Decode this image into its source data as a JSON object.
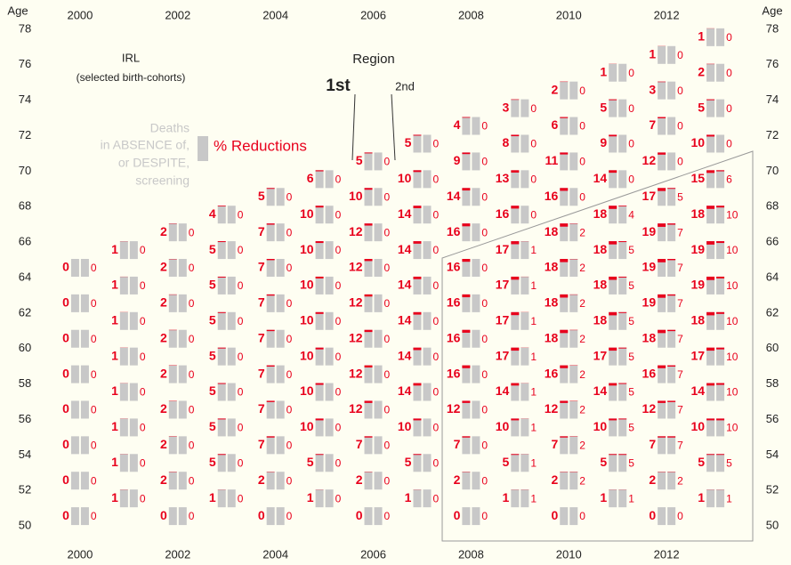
{
  "chart_data": {
    "type": "glyph",
    "notes": [
      "IRL",
      "(selected birth-cohorts)"
    ],
    "region_label": "Region",
    "first_label": "1st",
    "second_label": "2nd",
    "legend_gray": [
      "Deaths",
      "in ABSENCE of,",
      "or DESPITE,",
      "screening"
    ],
    "legend_red": "% Reductions",
    "ylabel": "Age",
    "bar_color": "#c8c8c8",
    "reduction_color": "#e8001c",
    "xlim": [
      1999,
      2014
    ],
    "xticks": [
      2000,
      2002,
      2004,
      2006,
      2008,
      2010,
      2012
    ],
    "ylim": [
      49,
      79
    ],
    "yticks": [
      50,
      52,
      54,
      56,
      58,
      60,
      62,
      64,
      66,
      68,
      70,
      72,
      74,
      76,
      78
    ],
    "columns": [
      {
        "year": 2000,
        "ages": [
          50,
          52,
          54,
          56,
          58,
          60,
          62,
          64
        ],
        "first": [
          0,
          0,
          0,
          0,
          0,
          0,
          0,
          0
        ],
        "second": [
          0,
          0,
          0,
          0,
          0,
          0,
          0,
          0
        ]
      },
      {
        "year": 2001,
        "ages": [
          51,
          53,
          55,
          57,
          59,
          61,
          63,
          65
        ],
        "first": [
          1,
          1,
          1,
          1,
          1,
          1,
          1,
          1
        ],
        "second": [
          0,
          0,
          0,
          0,
          0,
          0,
          0,
          0
        ]
      },
      {
        "year": 2002,
        "ages": [
          50,
          52,
          54,
          56,
          58,
          60,
          62,
          64,
          66
        ],
        "first": [
          0,
          2,
          2,
          2,
          2,
          2,
          2,
          2,
          2
        ],
        "second": [
          0,
          0,
          0,
          0,
          0,
          0,
          0,
          0,
          0
        ]
      },
      {
        "year": 2003,
        "ages": [
          51,
          53,
          55,
          57,
          59,
          61,
          63,
          65,
          67
        ],
        "first": [
          1,
          5,
          5,
          5,
          5,
          5,
          5,
          5,
          4
        ],
        "second": [
          0,
          0,
          0,
          0,
          0,
          0,
          0,
          0,
          0
        ]
      },
      {
        "year": 2004,
        "ages": [
          50,
          52,
          54,
          56,
          58,
          60,
          62,
          64,
          66,
          68
        ],
        "first": [
          0,
          2,
          7,
          7,
          7,
          7,
          7,
          7,
          7,
          5
        ],
        "second": [
          0,
          0,
          0,
          0,
          0,
          0,
          0,
          0,
          0,
          0
        ]
      },
      {
        "year": 2005,
        "ages": [
          51,
          53,
          55,
          57,
          59,
          61,
          63,
          65,
          67,
          69
        ],
        "first": [
          1,
          5,
          10,
          10,
          10,
          10,
          10,
          10,
          10,
          6
        ],
        "second": [
          0,
          0,
          0,
          0,
          0,
          0,
          0,
          0,
          0,
          0
        ]
      },
      {
        "year": 2006,
        "ages": [
          50,
          52,
          54,
          56,
          58,
          60,
          62,
          64,
          66,
          68,
          70
        ],
        "first": [
          0,
          2,
          7,
          12,
          12,
          12,
          12,
          12,
          12,
          10,
          5
        ],
        "second": [
          0,
          0,
          0,
          0,
          0,
          0,
          0,
          0,
          0,
          0,
          0
        ]
      },
      {
        "year": 2007,
        "ages": [
          51,
          53,
          55,
          57,
          59,
          61,
          63,
          65,
          67,
          69,
          71
        ],
        "first": [
          1,
          5,
          10,
          14,
          14,
          14,
          14,
          14,
          14,
          10,
          5
        ],
        "second": [
          0,
          0,
          0,
          0,
          0,
          0,
          0,
          0,
          0,
          0,
          0
        ]
      },
      {
        "year": 2008,
        "ages": [
          50,
          52,
          54,
          56,
          58,
          60,
          62,
          64,
          66,
          68,
          70,
          72
        ],
        "first": [
          0,
          2,
          7,
          12,
          16,
          16,
          16,
          16,
          16,
          14,
          9,
          4
        ],
        "second": [
          0,
          0,
          0,
          0,
          0,
          0,
          0,
          0,
          0,
          0,
          0,
          0
        ]
      },
      {
        "year": 2009,
        "ages": [
          51,
          53,
          55,
          57,
          59,
          61,
          63,
          65,
          67,
          69,
          71,
          73
        ],
        "first": [
          1,
          5,
          10,
          14,
          17,
          17,
          17,
          17,
          16,
          13,
          8,
          3
        ],
        "second": [
          1,
          1,
          1,
          1,
          1,
          1,
          1,
          1,
          0,
          0,
          0,
          0
        ]
      },
      {
        "year": 2010,
        "ages": [
          50,
          52,
          54,
          56,
          58,
          60,
          62,
          64,
          66,
          68,
          70,
          72,
          74
        ],
        "first": [
          0,
          2,
          7,
          12,
          16,
          18,
          18,
          18,
          18,
          16,
          11,
          6,
          2
        ],
        "second": [
          0,
          2,
          2,
          2,
          2,
          2,
          2,
          2,
          2,
          0,
          0,
          0,
          0
        ]
      },
      {
        "year": 2011,
        "ages": [
          51,
          53,
          55,
          57,
          59,
          61,
          63,
          65,
          67,
          69,
          71,
          73,
          75
        ],
        "first": [
          1,
          5,
          10,
          14,
          17,
          18,
          18,
          18,
          18,
          14,
          9,
          5,
          1
        ],
        "second": [
          1,
          5,
          5,
          5,
          5,
          5,
          5,
          5,
          4,
          0,
          0,
          0,
          0
        ]
      },
      {
        "year": 2012,
        "ages": [
          50,
          52,
          54,
          56,
          58,
          60,
          62,
          64,
          66,
          68,
          70,
          72,
          74,
          76
        ],
        "first": [
          0,
          2,
          7,
          12,
          16,
          18,
          19,
          19,
          19,
          17,
          12,
          7,
          3,
          1
        ],
        "second": [
          0,
          2,
          7,
          7,
          7,
          7,
          7,
          7,
          7,
          5,
          0,
          0,
          0,
          0
        ]
      },
      {
        "year": 2013,
        "ages": [
          51,
          53,
          55,
          57,
          59,
          61,
          63,
          65,
          67,
          69,
          71,
          73,
          75,
          77
        ],
        "first": [
          1,
          5,
          10,
          14,
          17,
          18,
          19,
          19,
          18,
          15,
          10,
          5,
          2,
          1
        ],
        "second": [
          1,
          5,
          10,
          10,
          10,
          10,
          10,
          10,
          10,
          6,
          0,
          0,
          0,
          0
        ]
      }
    ]
  }
}
